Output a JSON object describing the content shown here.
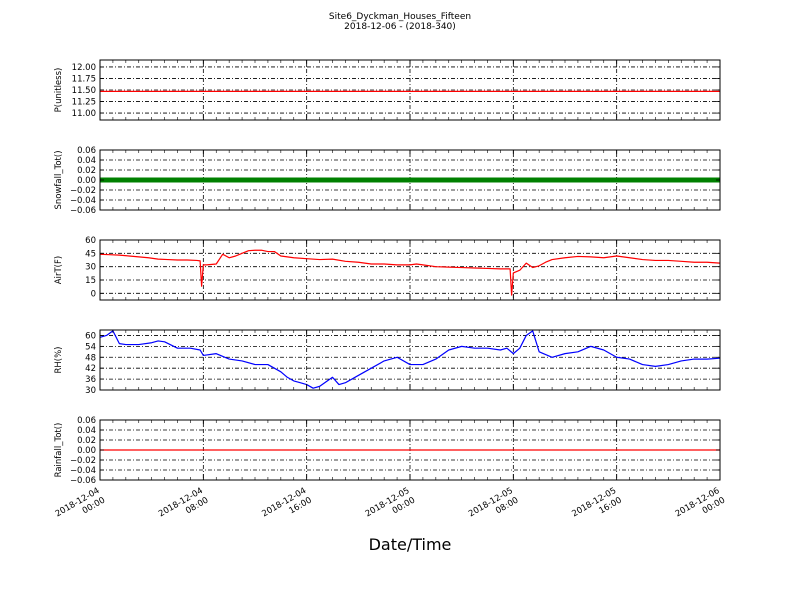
{
  "chart_data": {
    "type": "line",
    "title": "Site6_Dyckman_Houses_Fifteen",
    "subtitle": "2018-12-06 - (2018-340)",
    "xlabel": "Date/Time",
    "x_ticks": [
      "2018-12-04 00:00",
      "2018-12-04 08:00",
      "2018-12-04 16:00",
      "2018-12-05 00:00",
      "2018-12-05 08:00",
      "2018-12-05 16:00",
      "2018-12-06 00:00"
    ],
    "x_range": [
      "2018-12-04 00:00",
      "2018-12-06 00:00"
    ],
    "grid": true,
    "panels": [
      {
        "ylabel": "P(unitless)",
        "ylim": [
          10.85,
          12.15
        ],
        "yticks": [
          "11.00",
          "11.25",
          "11.50",
          "11.75",
          "12.00"
        ],
        "color": "#ff0000",
        "style": "line",
        "x": [
          "2018-12-04 00:00",
          "2018-12-06 00:00"
        ],
        "values": [
          11.47,
          11.47
        ]
      },
      {
        "ylabel": "Snowfall_Tot()",
        "ylim": [
          -0.06,
          0.06
        ],
        "yticks": [
          "0.06",
          "0.04",
          "0.02",
          "0.00",
          "−0.02",
          "−0.04",
          "−0.06"
        ],
        "color": "#008000",
        "style": "markers",
        "x": [
          "2018-12-04 00:00",
          "2018-12-06 00:00"
        ],
        "values": [
          0.0,
          0.0
        ]
      },
      {
        "ylabel": "AirT(F)",
        "ylim": [
          -7.5,
          60
        ],
        "yticks": [
          "60",
          "45",
          "30",
          "15",
          "0"
        ],
        "color": "#ff0000",
        "style": "line",
        "x": [
          "2018-12-04 00:00",
          "2018-12-04 00:45",
          "2018-12-04 01:30",
          "2018-12-04 02:15",
          "2018-12-04 03:00",
          "2018-12-04 03:45",
          "2018-12-04 04:30",
          "2018-12-04 05:15",
          "2018-12-04 06:00",
          "2018-12-04 06:45",
          "2018-12-04 07:30",
          "2018-12-04 07:45",
          "2018-12-04 07:52",
          "2018-12-04 08:00",
          "2018-12-04 08:15",
          "2018-12-04 09:00",
          "2018-12-04 09:30",
          "2018-12-04 10:00",
          "2018-12-04 10:30",
          "2018-12-04 11:00",
          "2018-12-04 11:30",
          "2018-12-04 12:00",
          "2018-12-04 12:30",
          "2018-12-04 13:00",
          "2018-12-04 13:30",
          "2018-12-04 14:00",
          "2018-12-04 15:00",
          "2018-12-04 16:00",
          "2018-12-04 17:00",
          "2018-12-04 18:00",
          "2018-12-04 19:00",
          "2018-12-04 20:00",
          "2018-12-04 21:00",
          "2018-12-04 22:00",
          "2018-12-04 23:00",
          "2018-12-05 00:00",
          "2018-12-05 00:30",
          "2018-12-05 01:00",
          "2018-12-05 02:00",
          "2018-12-05 03:00",
          "2018-12-05 04:00",
          "2018-12-05 05:00",
          "2018-12-05 06:00",
          "2018-12-05 07:00",
          "2018-12-05 07:45",
          "2018-12-05 07:52",
          "2018-12-05 08:00",
          "2018-12-05 08:30",
          "2018-12-05 09:00",
          "2018-12-05 09:30",
          "2018-12-05 10:00",
          "2018-12-05 10:30",
          "2018-12-05 11:00",
          "2018-12-05 12:00",
          "2018-12-05 13:00",
          "2018-12-05 14:00",
          "2018-12-05 15:00",
          "2018-12-05 16:00",
          "2018-12-05 17:00",
          "2018-12-05 18:00",
          "2018-12-05 19:00",
          "2018-12-05 20:00",
          "2018-12-05 21:00",
          "2018-12-05 22:00",
          "2018-12-05 23:00",
          "2018-12-06 00:00"
        ],
        "values": [
          44,
          43.5,
          43,
          42,
          41,
          40,
          38.5,
          38,
          37.5,
          37.5,
          37,
          36.5,
          8,
          32,
          32,
          33,
          44,
          40,
          42,
          45,
          48,
          48.5,
          48.5,
          47,
          47,
          42,
          40,
          39,
          38,
          38.5,
          36,
          35,
          33,
          33,
          32,
          32,
          33,
          32,
          30,
          29.5,
          29,
          28.5,
          28,
          27.5,
          27.5,
          -2,
          23,
          26,
          34,
          29,
          31,
          35,
          38,
          40,
          41.5,
          41,
          40,
          42,
          40,
          38,
          37,
          37,
          36,
          35,
          35,
          34
        ]
      },
      {
        "ylabel": "RH(%)",
        "ylim": [
          30,
          63
        ],
        "yticks": [
          "60",
          "54",
          "48",
          "42",
          "36",
          "30"
        ],
        "color": "#0000ff",
        "style": "line",
        "x": [
          "2018-12-04 00:00",
          "2018-12-04 00:30",
          "2018-12-04 01:00",
          "2018-12-04 01:30",
          "2018-12-04 02:00",
          "2018-12-04 03:00",
          "2018-12-04 04:00",
          "2018-12-04 04:30",
          "2018-12-04 05:00",
          "2018-12-04 06:00",
          "2018-12-04 07:00",
          "2018-12-04 07:45",
          "2018-12-04 08:00",
          "2018-12-04 09:00",
          "2018-12-04 10:00",
          "2018-12-04 11:00",
          "2018-12-04 12:00",
          "2018-12-04 13:00",
          "2018-12-04 14:00",
          "2018-12-04 14:30",
          "2018-12-04 15:00",
          "2018-12-04 15:30",
          "2018-12-04 16:00",
          "2018-12-04 16:30",
          "2018-12-04 17:00",
          "2018-12-04 18:00",
          "2018-12-04 18:30",
          "2018-12-04 19:00",
          "2018-12-04 20:00",
          "2018-12-04 21:00",
          "2018-12-04 22:00",
          "2018-12-04 23:00",
          "2018-12-05 00:00",
          "2018-12-05 01:00",
          "2018-12-05 02:00",
          "2018-12-05 03:00",
          "2018-12-05 04:00",
          "2018-12-05 05:00",
          "2018-12-05 06:00",
          "2018-12-05 07:00",
          "2018-12-05 07:30",
          "2018-12-05 08:00",
          "2018-12-05 08:30",
          "2018-12-05 09:00",
          "2018-12-05 09:30",
          "2018-12-05 10:00",
          "2018-12-05 11:00",
          "2018-12-05 12:00",
          "2018-12-05 13:00",
          "2018-12-05 14:00",
          "2018-12-05 15:00",
          "2018-12-05 16:00",
          "2018-12-05 17:00",
          "2018-12-05 18:00",
          "2018-12-05 19:00",
          "2018-12-05 20:00",
          "2018-12-05 21:00",
          "2018-12-05 22:00",
          "2018-12-05 23:00",
          "2018-12-06 00:00"
        ],
        "values": [
          59,
          60,
          62.5,
          55.5,
          55,
          55,
          56,
          57,
          56.5,
          53,
          53,
          52,
          49,
          50,
          47,
          46,
          44,
          44,
          40,
          37,
          35,
          34,
          33,
          31,
          32,
          37,
          33,
          34,
          38,
          42,
          46,
          48,
          44,
          44,
          47,
          52,
          54,
          53,
          53,
          52,
          53,
          50,
          53,
          60,
          62.5,
          51,
          48,
          50,
          51,
          54,
          52,
          48,
          47,
          44,
          43,
          44,
          46,
          47,
          47,
          47.5
        ]
      },
      {
        "ylabel": "Rainfall_Tot()",
        "ylim": [
          -0.06,
          0.06
        ],
        "yticks": [
          "0.06",
          "0.04",
          "0.02",
          "0.00",
          "−0.02",
          "−0.04",
          "−0.06"
        ],
        "color": "#ff0000",
        "style": "line",
        "x": [
          "2018-12-04 00:00",
          "2018-12-06 00:00"
        ],
        "values": [
          0.0,
          0.0
        ]
      }
    ]
  }
}
